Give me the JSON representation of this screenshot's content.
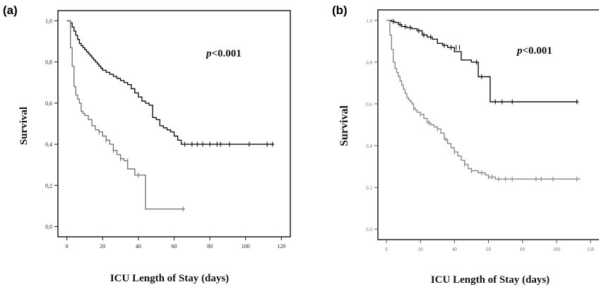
{
  "chart_data": [
    {
      "panel": "(a)",
      "type": "line",
      "title": "",
      "xlabel": "ICU Length of Stay (days)",
      "ylabel": "Survival",
      "annotation": {
        "p": "p",
        "rest": "<0.001"
      },
      "xlim": [
        -5,
        125
      ],
      "ylim": [
        -0.05,
        1.05
      ],
      "xticks": [
        0,
        20,
        40,
        60,
        80,
        100,
        120
      ],
      "xtick_labels": [
        "0",
        "20",
        "40",
        "60",
        "80",
        "100",
        "120"
      ],
      "yticks": [
        0.0,
        0.2,
        0.4,
        0.6,
        0.8,
        1.0
      ],
      "ytick_labels": [
        "0,0",
        "0,2",
        "0,4",
        "0,6",
        "0,8",
        "1,0"
      ],
      "grid": false,
      "series": [
        {
          "color": "#111111",
          "step_x": [
            0,
            2,
            3,
            4,
            5,
            6,
            7,
            8,
            9,
            10,
            11,
            12,
            13,
            14,
            15,
            16,
            17,
            18,
            19,
            20,
            22,
            24,
            26,
            28,
            30,
            32,
            34,
            36,
            38,
            40,
            42,
            44,
            46,
            48,
            50,
            52,
            54,
            56,
            58,
            60,
            62,
            64,
            116
          ],
          "step_y": [
            1.0,
            0.99,
            0.97,
            0.95,
            0.93,
            0.91,
            0.89,
            0.88,
            0.87,
            0.86,
            0.85,
            0.84,
            0.83,
            0.82,
            0.81,
            0.8,
            0.79,
            0.78,
            0.77,
            0.76,
            0.75,
            0.74,
            0.73,
            0.72,
            0.71,
            0.7,
            0.69,
            0.67,
            0.65,
            0.63,
            0.61,
            0.6,
            0.59,
            0.53,
            0.52,
            0.49,
            0.48,
            0.47,
            0.46,
            0.44,
            0.42,
            0.4,
            0.4
          ],
          "censor_x": [
            66,
            70,
            73,
            76,
            80,
            84,
            86,
            91,
            102,
            112,
            115
          ],
          "censor_y": [
            0.4,
            0.4,
            0.4,
            0.4,
            0.4,
            0.4,
            0.4,
            0.4,
            0.4,
            0.4,
            0.4
          ]
        },
        {
          "color": "#777777",
          "step_x": [
            0,
            2,
            3,
            4,
            5,
            6,
            7,
            8,
            9,
            10,
            12,
            14,
            16,
            18,
            20,
            22,
            24,
            26,
            28,
            30,
            32,
            34,
            36,
            38,
            40,
            42,
            44,
            66
          ],
          "step_y": [
            1.0,
            0.87,
            0.78,
            0.68,
            0.64,
            0.62,
            0.6,
            0.56,
            0.55,
            0.54,
            0.52,
            0.49,
            0.47,
            0.46,
            0.44,
            0.42,
            0.4,
            0.37,
            0.35,
            0.33,
            0.32,
            0.28,
            0.28,
            0.25,
            0.25,
            0.25,
            0.085,
            0.085
          ],
          "censor_x": [
            18,
            22,
            26,
            30,
            34,
            40,
            65
          ],
          "censor_y": [
            0.46,
            0.42,
            0.37,
            0.33,
            0.32,
            0.25,
            0.085
          ]
        }
      ]
    },
    {
      "panel": "(b)",
      "type": "line",
      "title": "",
      "xlabel": "ICU Length of Stay (days)",
      "ylabel": "Survival",
      "annotation": {
        "p": "p",
        "rest": "<0.001"
      },
      "xlim": [
        -5,
        125
      ],
      "ylim": [
        -0.05,
        1.05
      ],
      "xticks": [
        0,
        20,
        40,
        60,
        80,
        100,
        120
      ],
      "xtick_labels": [
        "0",
        "20",
        "40",
        "60",
        "80",
        "100",
        "120"
      ],
      "yticks": [
        0.0,
        0.2,
        0.4,
        0.6,
        0.8,
        1.0
      ],
      "ytick_labels": [
        "0.0",
        "0.2",
        "0.4",
        "0.6",
        "0.8",
        "1.0"
      ],
      "grid": false,
      "series": [
        {
          "color": "#111111",
          "step_x": [
            0,
            3,
            5,
            7,
            9,
            12,
            15,
            18,
            21,
            24,
            27,
            30,
            33,
            36,
            40,
            44,
            50,
            54,
            58,
            61,
            113
          ],
          "step_y": [
            1.0,
            0.995,
            0.99,
            0.98,
            0.97,
            0.965,
            0.96,
            0.95,
            0.93,
            0.92,
            0.91,
            0.89,
            0.88,
            0.87,
            0.85,
            0.81,
            0.8,
            0.73,
            0.73,
            0.61,
            0.61
          ],
          "censor_x": [
            4,
            8,
            11,
            14,
            19,
            22,
            26,
            34,
            38,
            41,
            43,
            53,
            56,
            64,
            68,
            74,
            112
          ],
          "censor_y": [
            0.995,
            0.98,
            0.97,
            0.965,
            0.95,
            0.93,
            0.92,
            0.88,
            0.87,
            0.87,
            0.87,
            0.8,
            0.73,
            0.61,
            0.61,
            0.61,
            0.61
          ]
        },
        {
          "color": "#888888",
          "step_x": [
            0,
            2,
            3,
            4,
            5,
            6,
            7,
            8,
            9,
            10,
            11,
            12,
            13,
            14,
            15,
            16,
            17,
            18,
            20,
            22,
            24,
            26,
            28,
            30,
            32,
            34,
            36,
            38,
            40,
            42,
            44,
            46,
            48,
            50,
            52,
            54,
            56,
            58,
            60,
            64,
            114
          ],
          "step_y": [
            1.0,
            0.93,
            0.86,
            0.8,
            0.77,
            0.75,
            0.73,
            0.71,
            0.69,
            0.67,
            0.65,
            0.63,
            0.62,
            0.61,
            0.6,
            0.58,
            0.57,
            0.56,
            0.55,
            0.53,
            0.51,
            0.5,
            0.49,
            0.48,
            0.46,
            0.43,
            0.41,
            0.39,
            0.37,
            0.35,
            0.33,
            0.31,
            0.29,
            0.28,
            0.28,
            0.27,
            0.27,
            0.26,
            0.25,
            0.24,
            0.24
          ],
          "censor_x": [
            16,
            20,
            25,
            30,
            35,
            40,
            46,
            50,
            56,
            60,
            62,
            66,
            70,
            74,
            88,
            91,
            98,
            112
          ],
          "censor_y": [
            0.58,
            0.55,
            0.51,
            0.48,
            0.43,
            0.37,
            0.31,
            0.28,
            0.27,
            0.25,
            0.25,
            0.24,
            0.24,
            0.24,
            0.24,
            0.24,
            0.24,
            0.24
          ]
        }
      ]
    }
  ]
}
